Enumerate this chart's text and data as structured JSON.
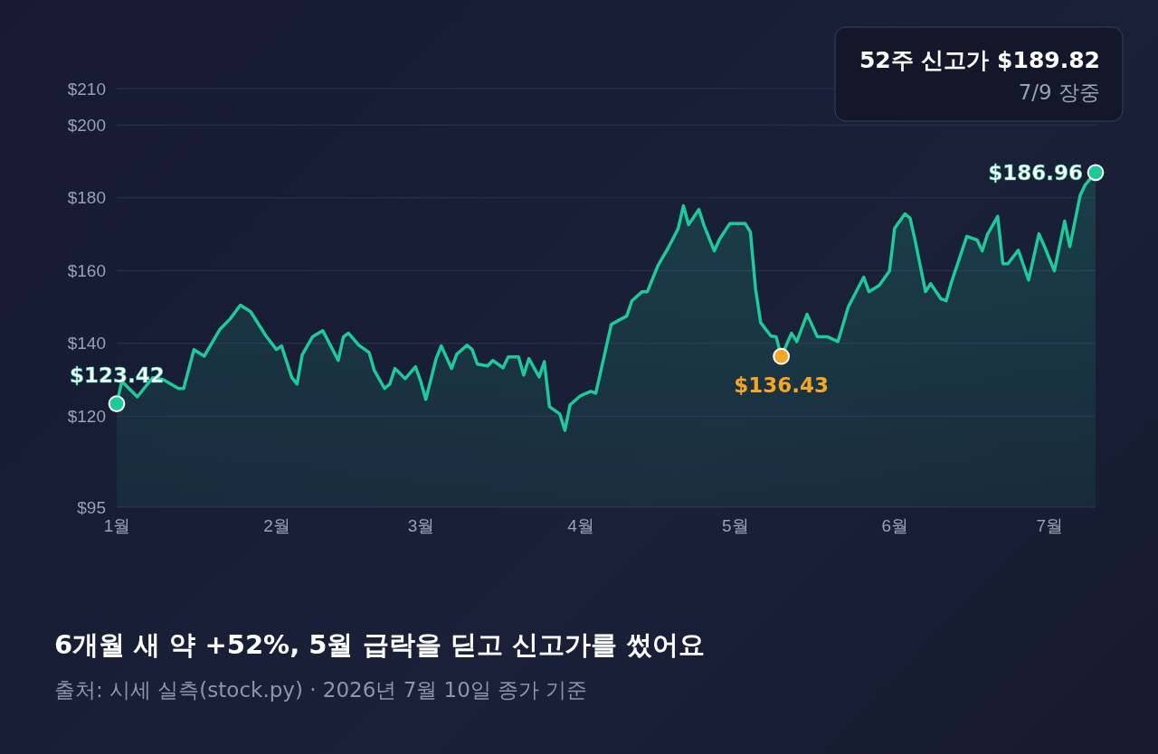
{
  "chart_data": {
    "type": "line",
    "title": "6개월 새 약 +52%, 5월 급락을 딛고 신고가를 썼어요",
    "annotations": [
      "52주 신고가 $189.82",
      "7/9 장중",
      "출처: 시세 실측(stock.py) · 2026년 7월 10일 종가 기준"
    ],
    "xlim": [
      "2026-01-01",
      "2026-07-10"
    ],
    "xticks": [
      {
        "value": "2026-01-01",
        "label": "1월"
      },
      {
        "value": "2026-02-01",
        "label": "2월"
      },
      {
        "value": "2026-03-01",
        "label": "3월"
      },
      {
        "value": "2026-04-01",
        "label": "4월"
      },
      {
        "value": "2026-05-01",
        "label": "5월"
      },
      {
        "value": "2026-06-01",
        "label": "6월"
      },
      {
        "value": "2026-07-01",
        "label": "7월"
      }
    ],
    "ylim": [
      95,
      210
    ],
    "yticks": [
      {
        "value": 95,
        "label": "$95"
      },
      {
        "value": 120,
        "label": "$120"
      },
      {
        "value": 140,
        "label": "$140"
      },
      {
        "value": 160,
        "label": "$160"
      },
      {
        "value": 180,
        "label": "$180"
      },
      {
        "value": 200,
        "label": "$200"
      },
      {
        "value": 210,
        "label": "$210"
      }
    ],
    "grid": "y",
    "marker": "none",
    "line_style": "solid",
    "series": [
      {
        "type": "area",
        "color": "#1ec99a",
        "x": [
          "2026-01-01",
          "2026-01-02",
          "2026-01-05",
          "2026-01-08",
          "2026-01-10",
          "2026-01-13",
          "2026-01-14",
          "2026-01-16",
          "2026-01-18",
          "2026-01-21",
          "2026-01-23",
          "2026-01-25",
          "2026-01-27",
          "2026-01-30",
          "2026-02-01",
          "2026-02-02",
          "2026-02-04",
          "2026-02-05",
          "2026-02-06",
          "2026-02-08",
          "2026-02-10",
          "2026-02-11",
          "2026-02-13",
          "2026-02-14",
          "2026-02-15",
          "2026-02-17",
          "2026-02-19",
          "2026-02-20",
          "2026-02-22",
          "2026-02-23",
          "2026-02-24",
          "2026-02-26",
          "2026-02-28",
          "2026-03-01",
          "2026-03-02",
          "2026-03-04",
          "2026-03-05",
          "2026-03-07",
          "2026-03-08",
          "2026-03-10",
          "2026-03-11",
          "2026-03-12",
          "2026-03-14",
          "2026-03-15",
          "2026-03-17",
          "2026-03-18",
          "2026-03-20",
          "2026-03-21",
          "2026-03-22",
          "2026-03-24",
          "2026-03-25",
          "2026-03-26",
          "2026-03-28",
          "2026-03-29",
          "2026-03-30",
          "2026-04-01",
          "2026-04-03",
          "2026-04-04",
          "2026-04-05",
          "2026-04-07",
          "2026-04-08",
          "2026-04-10",
          "2026-04-11",
          "2026-04-13",
          "2026-04-14",
          "2026-04-16",
          "2026-04-17",
          "2026-04-18",
          "2026-04-20",
          "2026-04-21",
          "2026-04-22",
          "2026-04-24",
          "2026-04-25",
          "2026-04-27",
          "2026-04-28",
          "2026-04-30",
          "2026-05-03",
          "2026-05-04",
          "2026-05-05",
          "2026-05-06",
          "2026-05-08",
          "2026-05-09",
          "2026-05-10",
          "2026-05-12",
          "2026-05-13",
          "2026-05-15",
          "2026-05-17",
          "2026-05-19",
          "2026-05-21",
          "2026-05-23",
          "2026-05-26",
          "2026-05-27",
          "2026-05-29",
          "2026-05-31",
          "2026-06-01",
          "2026-06-03",
          "2026-06-04",
          "2026-06-05",
          "2026-06-07",
          "2026-06-08",
          "2026-06-10",
          "2026-06-11",
          "2026-06-12",
          "2026-06-15",
          "2026-06-17",
          "2026-06-18",
          "2026-06-19",
          "2026-06-21",
          "2026-06-22",
          "2026-06-23",
          "2026-06-25",
          "2026-06-27",
          "2026-06-29",
          "2026-06-30",
          "2026-07-02",
          "2026-07-04",
          "2026-07-05",
          "2026-07-07",
          "2026-07-08",
          "2026-07-10"
        ],
        "values": [
          123.42,
          129.6,
          125.3,
          130.6,
          130.1,
          127.6,
          127.6,
          138.3,
          136.5,
          143.8,
          146.7,
          150.5,
          148.7,
          142.0,
          138.3,
          139.3,
          130.6,
          128.8,
          136.8,
          141.8,
          143.5,
          140.8,
          135.3,
          141.8,
          142.8,
          139.5,
          137.5,
          132.6,
          127.6,
          128.8,
          133.1,
          130.3,
          133.6,
          129.6,
          124.6,
          135.8,
          139.3,
          133.1,
          137.0,
          139.5,
          138.3,
          134.3,
          133.8,
          135.3,
          133.3,
          136.3,
          136.3,
          131.3,
          135.8,
          130.8,
          135.0,
          122.6,
          120.6,
          116.1,
          123.1,
          125.6,
          126.8,
          126.3,
          132.6,
          145.2,
          146.0,
          147.5,
          151.7,
          154.2,
          154.2,
          161.2,
          163.7,
          166.1,
          171.6,
          177.8,
          172.6,
          176.8,
          172.4,
          165.4,
          168.6,
          172.9,
          172.9,
          170.6,
          155.0,
          145.7,
          142.0,
          141.8,
          136.43,
          142.8,
          140.5,
          148.0,
          141.8,
          141.8,
          140.5,
          150.0,
          158.2,
          154.2,
          155.9,
          159.9,
          171.6,
          175.6,
          174.4,
          168.1,
          154.2,
          156.4,
          152.2,
          151.7,
          156.7,
          169.4,
          168.4,
          165.4,
          169.9,
          174.9,
          161.9,
          161.9,
          165.6,
          157.4,
          170.1,
          166.9,
          159.9,
          173.6,
          166.6,
          180.6,
          183.6,
          186.96
        ]
      },
      {
        "type": "scatter",
        "marker": "circle",
        "x": [
          "2026-01-01",
          "2026-05-10",
          "2026-07-10"
        ],
        "values": [
          123.42,
          136.43,
          186.96
        ],
        "colors": [
          "#1ec99a",
          "#f5a623",
          "#1ec99a"
        ],
        "value_labels": [
          "$123.42",
          "$136.43",
          "$186.96"
        ]
      }
    ]
  }
}
